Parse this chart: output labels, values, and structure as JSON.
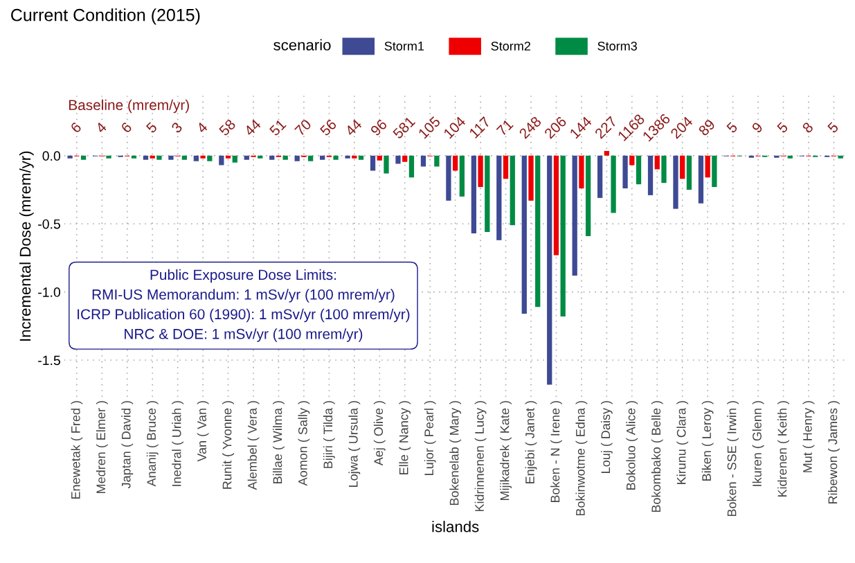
{
  "chart_data": {
    "type": "bar",
    "title": "Current Condition (2015)",
    "xlabel": "islands",
    "ylabel": "Incremental Dose (mrem/yr)",
    "legend_title": "scenario",
    "legend": "top",
    "grid": true,
    "categories": [
      "Enewetak ( Fred )",
      "Medren ( Elmer )",
      "Japtan ( David )",
      "Ananij ( Bruce )",
      "Inedral ( Uriah )",
      "Van ( Van )",
      "Runit ( Yvonne )",
      "Alembel ( Vera )",
      "Billae ( Wilma )",
      "Aomon ( Sally )",
      "Bijiri ( Tilda )",
      "Lojwa ( Ursula )",
      "Aej ( Olive )",
      "Elle ( Nancy )",
      "Lujor ( Pearl )",
      "Bokenelab ( Mary )",
      "Kidrinnenen ( Lucy )",
      "Mijikadrek ( Kate )",
      "Enjebi ( Janet )",
      "Boken - N ( Irene )",
      "Bokinwotme ( Edna )",
      "Louj ( Daisy )",
      "Bokoluo ( Alice )",
      "Bokombako ( Belle )",
      "Kirunu ( Clara )",
      "Biken ( Leroy )",
      "Boken - SSE ( Irwin )",
      "Ikuren ( Glenn )",
      "Kidrenen ( Keith )",
      "Mut ( Henry )",
      "Ribewon ( James )"
    ],
    "series": [
      {
        "name": "Storm1",
        "color": "#3e4a94",
        "values": [
          -0.02,
          -0.005,
          -0.01,
          -0.03,
          -0.03,
          -0.04,
          -0.07,
          -0.03,
          -0.03,
          -0.04,
          -0.03,
          -0.02,
          -0.11,
          -0.06,
          -0.08,
          -0.33,
          -0.57,
          -0.62,
          -1.16,
          -1.68,
          -0.88,
          -0.31,
          -0.24,
          -0.29,
          -0.39,
          -0.35,
          -0.005,
          -0.015,
          -0.015,
          -0.005,
          -0.01
        ]
      },
      {
        "name": "Storm2",
        "color": "#ee0000",
        "values": [
          -0.005,
          -0.005,
          -0.005,
          -0.02,
          -0.005,
          -0.02,
          -0.02,
          -0.01,
          -0.01,
          -0.01,
          -0.01,
          -0.02,
          -0.035,
          -0.045,
          -0.005,
          -0.11,
          -0.23,
          -0.17,
          -0.33,
          -0.73,
          -0.24,
          0.035,
          -0.07,
          -0.1,
          -0.17,
          -0.16,
          -0.005,
          -0.005,
          -0.005,
          -0.005,
          -0.005
        ]
      },
      {
        "name": "Storm3",
        "color": "#008b45",
        "values": [
          -0.03,
          -0.02,
          -0.02,
          -0.03,
          -0.03,
          -0.04,
          -0.05,
          -0.02,
          -0.03,
          -0.04,
          -0.03,
          -0.03,
          -0.13,
          -0.16,
          -0.08,
          -0.3,
          -0.56,
          -0.51,
          -1.11,
          -1.18,
          -0.59,
          -0.42,
          -0.21,
          -0.2,
          -0.25,
          -0.23,
          -0.005,
          -0.01,
          -0.02,
          -0.01,
          -0.02
        ]
      }
    ],
    "ylim": [
      -1.77,
      0.44
    ],
    "yticks": [
      {
        "value": 0,
        "label": "0.0"
      },
      {
        "value": -0.5,
        "label": "-0.5"
      },
      {
        "value": -1,
        "label": "-1.0"
      },
      {
        "value": -1.5,
        "label": "-1.5"
      }
    ],
    "annotations": [
      "Baseline (mrem/yr)",
      "Public Exposure Dose Limits:\nRMI-US Memorandum: 1 mSv/yr (100 mrem/yr)\nICRP Publication 60 (1990): 1 mSv/yr (100 mrem/yr)\nNRC & DOE: 1 mSv/yr (100 mrem/yr)",
      "6",
      "4",
      "6",
      "5",
      "3",
      "4",
      "58",
      "44",
      "51",
      "70",
      "56",
      "44",
      "96",
      "581",
      "105",
      "104",
      "117",
      "71",
      "248",
      "206",
      "144",
      "227",
      "1168",
      "1386",
      "204",
      "89",
      "5",
      "9",
      "5",
      "8",
      "5"
    ]
  }
}
